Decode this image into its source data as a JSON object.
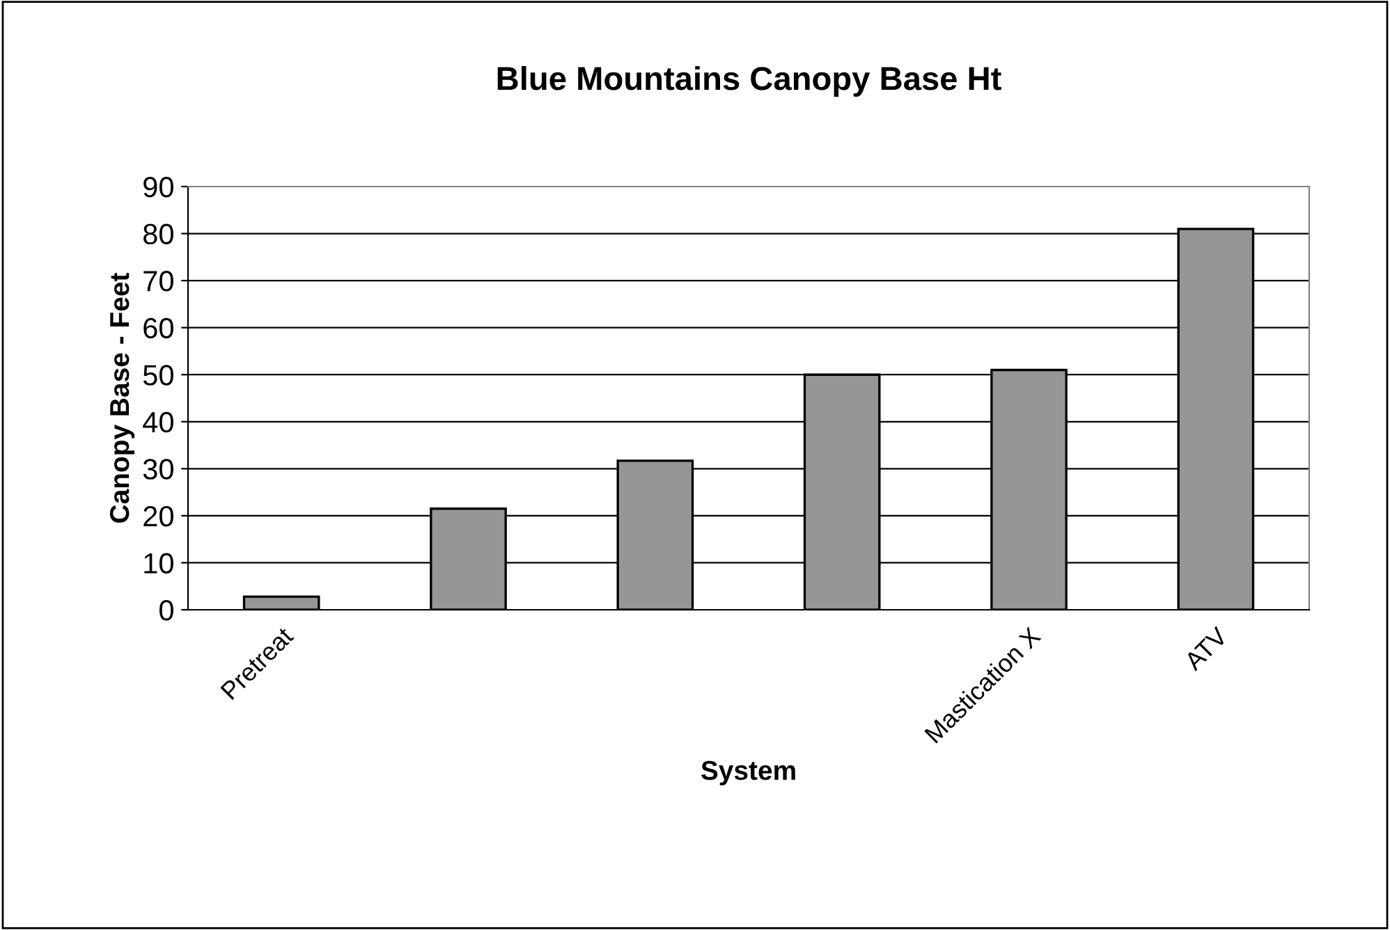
{
  "chart_data": {
    "type": "bar",
    "title": "Blue Mountains Canopy Base Ht",
    "xlabel": "System",
    "ylabel": "Canopy Base - Feet",
    "categories": [
      "Pretreat",
      null,
      null,
      null,
      "Mastication X",
      "ATV"
    ],
    "values": [
      2.8,
      21.5,
      31.7,
      50,
      51,
      81
    ],
    "color": "#969696",
    "ylim": [
      0,
      90
    ],
    "yticks": [
      0,
      10,
      20,
      30,
      40,
      50,
      60,
      70,
      80,
      90
    ],
    "grid": "y"
  }
}
